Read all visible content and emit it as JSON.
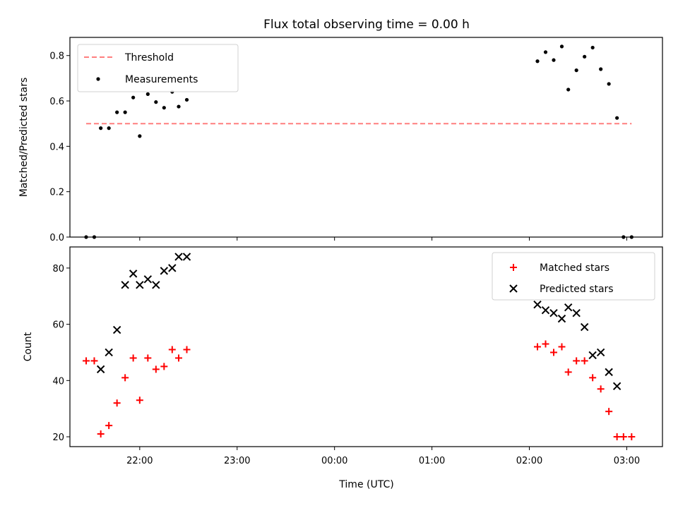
{
  "title": "Flux total observing time = 0.00 h",
  "xlabel": "Time (UTC)",
  "colors": {
    "threshold": "#ff7f7f",
    "measurement": "#000000",
    "matched": "#ff0000",
    "predicted": "#000000"
  },
  "chart_data": [
    {
      "type": "scatter",
      "ylabel": "Matched/Predicted stars",
      "xlim": [
        "21:17",
        "03:22"
      ],
      "ylim": [
        0,
        0.88
      ],
      "yticks": [
        0.0,
        0.2,
        0.4,
        0.6,
        0.8
      ],
      "legend_position": "top-left",
      "threshold": {
        "label": "Threshold",
        "y": 0.5,
        "x_start": "21:27",
        "x_end": "03:03"
      },
      "series": [
        {
          "name": "Measurements",
          "marker": "dot",
          "points": [
            [
              "21:27",
              0.0
            ],
            [
              "21:32",
              0.0
            ],
            [
              "21:36",
              0.48
            ],
            [
              "21:41",
              0.48
            ],
            [
              "21:46",
              0.55
            ],
            [
              "21:51",
              0.55
            ],
            [
              "21:56",
              0.615
            ],
            [
              "22:00",
              0.445
            ],
            [
              "22:05",
              0.63
            ],
            [
              "22:10",
              0.595
            ],
            [
              "22:15",
              0.57
            ],
            [
              "22:20",
              0.64
            ],
            [
              "22:24",
              0.575
            ],
            [
              "22:29",
              0.605
            ],
            [
              "02:05",
              0.775
            ],
            [
              "02:10",
              0.815
            ],
            [
              "02:15",
              0.78
            ],
            [
              "02:20",
              0.84
            ],
            [
              "02:24",
              0.65
            ],
            [
              "02:29",
              0.735
            ],
            [
              "02:34",
              0.795
            ],
            [
              "02:39",
              0.835
            ],
            [
              "02:44",
              0.74
            ],
            [
              "02:49",
              0.675
            ],
            [
              "02:54",
              0.525
            ],
            [
              "02:58",
              0.0
            ],
            [
              "03:03",
              0.0
            ]
          ]
        }
      ]
    },
    {
      "type": "scatter",
      "ylabel": "Count",
      "xlim": [
        "21:17",
        "03:22"
      ],
      "ylim": [
        16.5,
        87.5
      ],
      "yticks": [
        20,
        40,
        60,
        80
      ],
      "xticks": [
        "22:00",
        "23:00",
        "00:00",
        "01:00",
        "02:00",
        "03:00"
      ],
      "legend_position": "top-right",
      "series": [
        {
          "name": "Matched stars",
          "marker": "plus",
          "points": [
            [
              "21:27",
              47
            ],
            [
              "21:32",
              47
            ],
            [
              "21:36",
              21
            ],
            [
              "21:41",
              24
            ],
            [
              "21:46",
              32
            ],
            [
              "21:51",
              41
            ],
            [
              "21:56",
              48
            ],
            [
              "22:00",
              33
            ],
            [
              "22:05",
              48
            ],
            [
              "22:10",
              44
            ],
            [
              "22:15",
              45
            ],
            [
              "22:20",
              51
            ],
            [
              "22:24",
              48
            ],
            [
              "22:29",
              51
            ],
            [
              "02:05",
              52
            ],
            [
              "02:10",
              53
            ],
            [
              "02:15",
              50
            ],
            [
              "02:20",
              52
            ],
            [
              "02:24",
              43
            ],
            [
              "02:29",
              47
            ],
            [
              "02:34",
              47
            ],
            [
              "02:39",
              41
            ],
            [
              "02:44",
              37
            ],
            [
              "02:49",
              29
            ],
            [
              "02:54",
              20
            ],
            [
              "02:58",
              20
            ],
            [
              "03:03",
              20
            ]
          ]
        },
        {
          "name": "Predicted stars",
          "marker": "x",
          "points": [
            [
              "21:36",
              44
            ],
            [
              "21:41",
              50
            ],
            [
              "21:46",
              58
            ],
            [
              "21:51",
              74
            ],
            [
              "21:56",
              78
            ],
            [
              "22:00",
              74
            ],
            [
              "22:05",
              76
            ],
            [
              "22:10",
              74
            ],
            [
              "22:15",
              79
            ],
            [
              "22:20",
              80
            ],
            [
              "22:24",
              84
            ],
            [
              "22:29",
              84
            ],
            [
              "02:05",
              67
            ],
            [
              "02:10",
              65
            ],
            [
              "02:15",
              64
            ],
            [
              "02:20",
              62
            ],
            [
              "02:24",
              66
            ],
            [
              "02:29",
              64
            ],
            [
              "02:34",
              59
            ],
            [
              "02:39",
              49
            ],
            [
              "02:44",
              50
            ],
            [
              "02:49",
              43
            ],
            [
              "02:54",
              38
            ]
          ]
        }
      ]
    }
  ]
}
